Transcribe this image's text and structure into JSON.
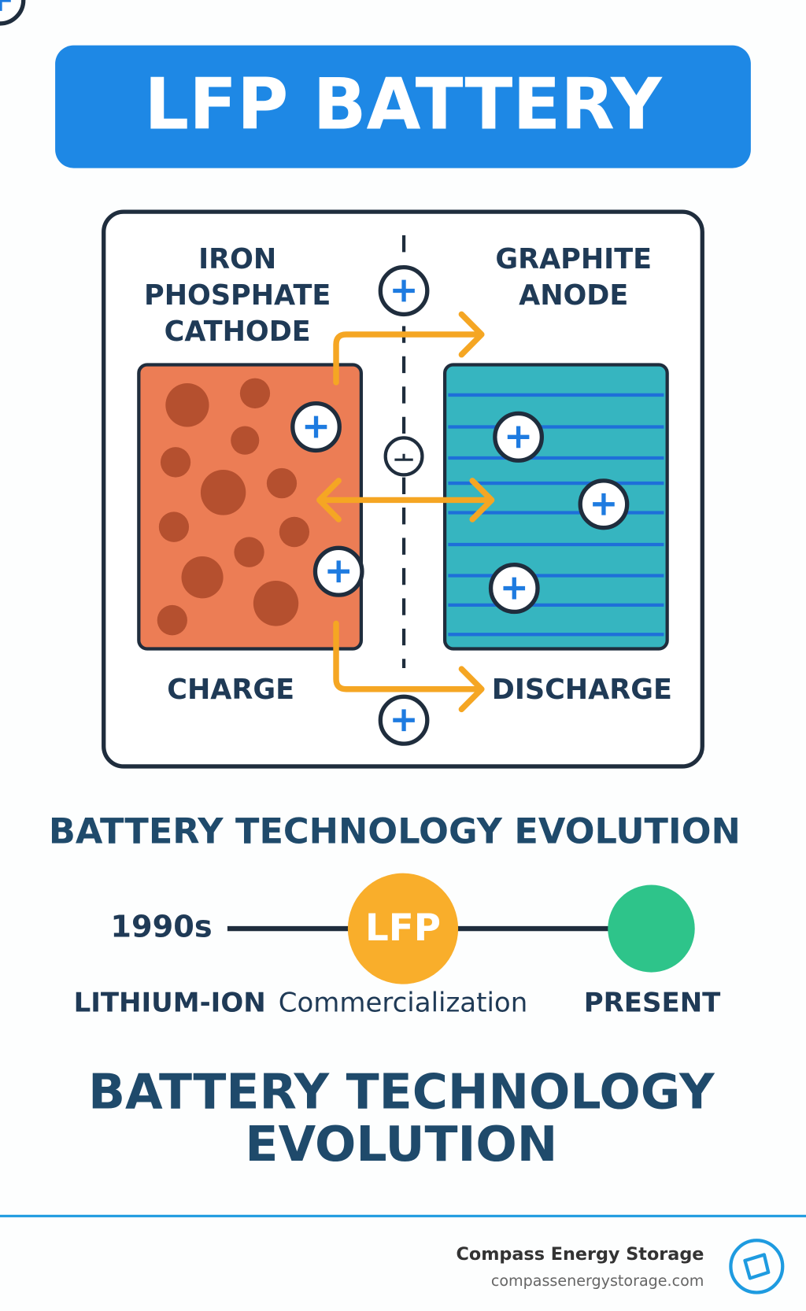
{
  "header": {
    "title": "LFP BATTERY"
  },
  "diagram": {
    "cathode_label": [
      "IRON",
      "PHOSPHATE",
      "CATHODE"
    ],
    "anode_label": [
      "GRAPHITE",
      "ANODE"
    ],
    "charge_label": "CHARGE",
    "discharge_label": "DISCHARGE"
  },
  "timeline": {
    "heading": "BATTERY TECHNOLOGY EVOLUTION",
    "start_label": "1990s",
    "middle_label": "LFP",
    "captions": [
      "LITHIUM-ION",
      "Commercialization",
      "PRESENT"
    ]
  },
  "section_heading": [
    "BATTERY TECHNOLOGY",
    "EVOLUTION"
  ],
  "footer": {
    "brand": "Compass Energy Storage",
    "url": "compassenergystorage.com"
  }
}
